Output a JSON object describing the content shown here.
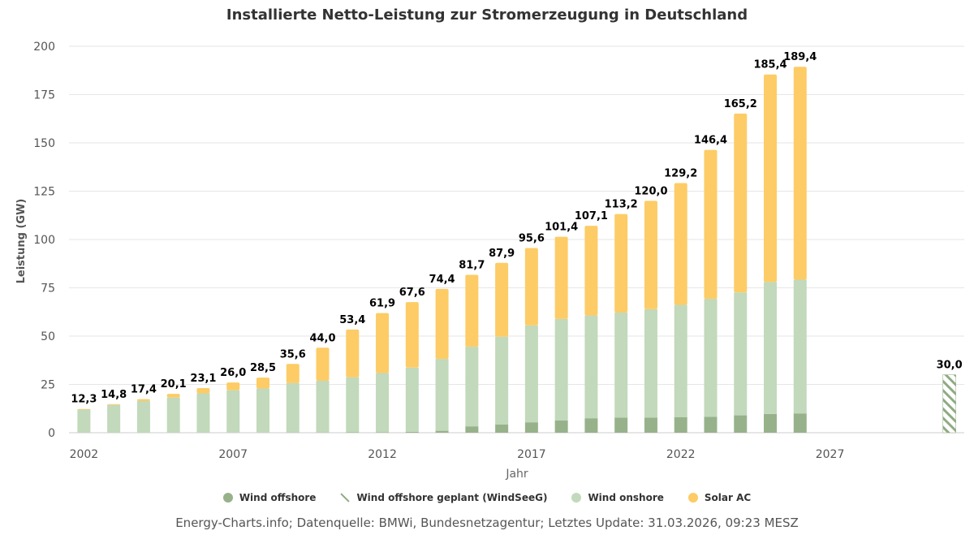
{
  "chart_data": {
    "type": "bar",
    "stacked": true,
    "title": "Installierte Netto-Leistung zur Stromerzeugung in Deutschland",
    "xlabel": "Jahr",
    "ylabel": "Leistung (GW)",
    "ylim": [
      0,
      200
    ],
    "yticks": [
      0,
      25,
      50,
      75,
      100,
      125,
      150,
      175,
      200
    ],
    "xlim": [
      2001.5,
      2031.5
    ],
    "xticks": [
      "2002",
      "2007",
      "2012",
      "2017",
      "2022",
      "2027"
    ],
    "grid": "horizontal",
    "legend_position": "bottom",
    "categories": [
      2002,
      2003,
      2004,
      2005,
      2006,
      2007,
      2008,
      2009,
      2010,
      2011,
      2012,
      2013,
      2014,
      2015,
      2016,
      2017,
      2018,
      2019,
      2020,
      2021,
      2022,
      2023,
      2024,
      2025,
      2026
    ],
    "series": [
      {
        "name": "Wind offshore",
        "color": "#97b28b",
        "values": [
          0,
          0,
          0,
          0,
          0,
          0,
          0,
          0.1,
          0.1,
          0.2,
          0.3,
          0.5,
          1.0,
          3.3,
          4.2,
          5.4,
          6.4,
          7.5,
          7.8,
          7.8,
          8.1,
          8.3,
          9.0,
          9.7,
          10.0
        ]
      },
      {
        "name": "Wind onshore",
        "color": "#c2d9bb",
        "values": [
          12.0,
          14.4,
          16.4,
          18.2,
          20.4,
          22.0,
          22.9,
          25.6,
          26.8,
          28.5,
          30.6,
          33.2,
          37.2,
          41.2,
          45.5,
          50.1,
          52.5,
          53.2,
          54.4,
          56.1,
          58.1,
          61.0,
          63.6,
          68.3,
          69.2
        ]
      },
      {
        "name": "Solar AC",
        "color": "#fdcc66",
        "values": [
          0.3,
          0.4,
          1.0,
          1.9,
          2.7,
          4.0,
          5.6,
          9.9,
          17.1,
          24.7,
          31.0,
          33.9,
          36.2,
          37.2,
          38.2,
          40.1,
          42.5,
          46.4,
          51.0,
          56.1,
          63.0,
          77.1,
          92.6,
          107.4,
          110.2
        ]
      },
      {
        "name": "Wind offshore geplant (WindSeeG)",
        "color": "#8faa82",
        "pattern": "hatched",
        "points": [
          {
            "x": 2031,
            "value": 30.0
          }
        ]
      }
    ],
    "data_labels": [
      "12,3",
      "14,8",
      "17,4",
      "20,1",
      "23,1",
      "26,0",
      "28,5",
      "35,6",
      "44,0",
      "53,4",
      "61,9",
      "67,6",
      "74,4",
      "81,7",
      "87,9",
      "95,6",
      "101,4",
      "107,1",
      "113,2",
      "120,0",
      "129,2",
      "146,4",
      "165,2",
      "185,4",
      "189,4"
    ],
    "planned_label": "30,0",
    "legend": [
      "Wind offshore",
      "Wind offshore geplant (WindSeeG)",
      "Wind onshore",
      "Solar AC"
    ]
  },
  "footer": "Energy-Charts.info; Datenquelle: BMWi, Bundesnetzagentur; Letztes Update: 31.03.2026, 09:23 MESZ"
}
